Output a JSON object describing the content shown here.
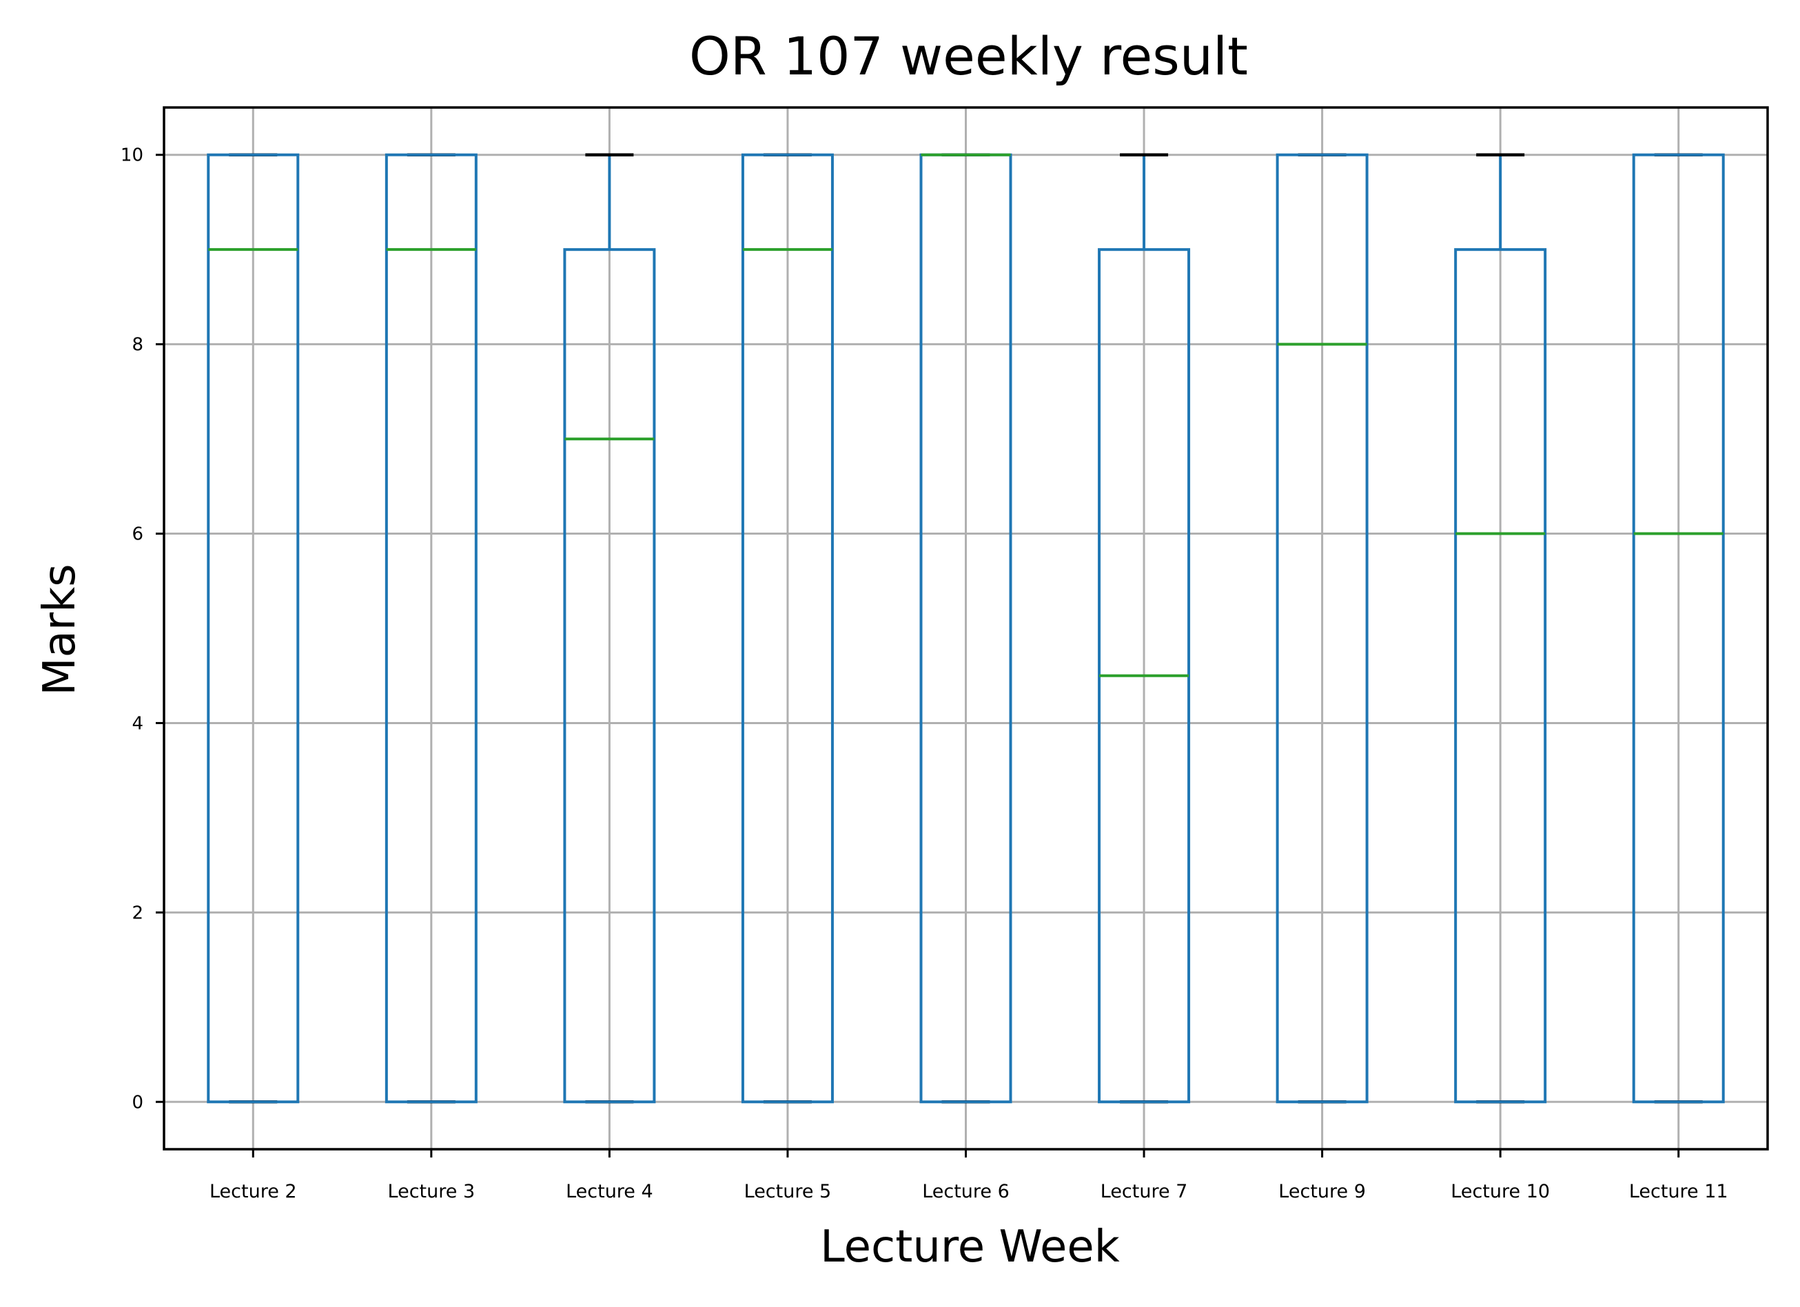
{
  "chart_data": {
    "type": "box",
    "title": "OR 107 weekly result",
    "xlabel": "Lecture Week",
    "ylabel": "Marks",
    "ylim": [
      -0.5,
      10.5
    ],
    "yticks": [
      0,
      2,
      4,
      6,
      8,
      10
    ],
    "grid": true,
    "categories": [
      "Lecture 2",
      "Lecture 3",
      "Lecture 4",
      "Lecture 5",
      "Lecture 6",
      "Lecture 7",
      "Lecture 9",
      "Lecture 10",
      "Lecture 11"
    ],
    "boxes": [
      {
        "whisker_low": 0,
        "q1": 0,
        "median": 9,
        "q3": 10,
        "whisker_high": 10
      },
      {
        "whisker_low": 0,
        "q1": 0,
        "median": 9,
        "q3": 10,
        "whisker_high": 10
      },
      {
        "whisker_low": 0,
        "q1": 0,
        "median": 7,
        "q3": 9,
        "whisker_high": 10
      },
      {
        "whisker_low": 0,
        "q1": 0,
        "median": 9,
        "q3": 10,
        "whisker_high": 10
      },
      {
        "whisker_low": 0,
        "q1": 0,
        "median": 10,
        "q3": 10,
        "whisker_high": 10
      },
      {
        "whisker_low": 0,
        "q1": 0,
        "median": 4.5,
        "q3": 9,
        "whisker_high": 10
      },
      {
        "whisker_low": 0,
        "q1": 0,
        "median": 8,
        "q3": 10,
        "whisker_high": 10
      },
      {
        "whisker_low": 0,
        "q1": 0,
        "median": 6,
        "q3": 9,
        "whisker_high": 10
      },
      {
        "whisker_low": 0,
        "q1": 0,
        "median": 6,
        "q3": 10,
        "whisker_high": 10
      }
    ],
    "colors": {
      "box": "#1f77b4",
      "median": "#2ca02c",
      "cap": "#000000",
      "grid": "#b0b0b0",
      "axes": "#000000"
    }
  }
}
